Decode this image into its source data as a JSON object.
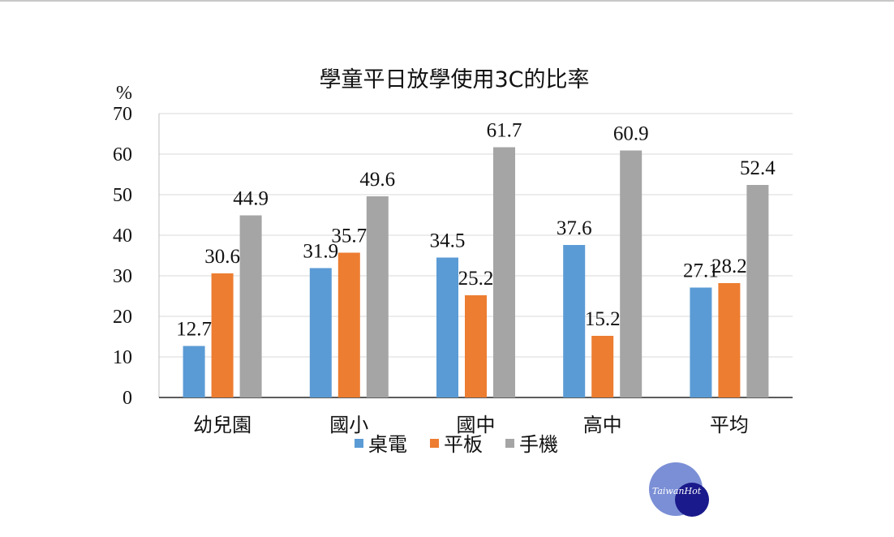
{
  "chart_data": {
    "type": "bar",
    "title": "學童平日放學使用3C的比率",
    "ylabel": "%",
    "xlabel": "",
    "ylim": [
      0,
      70
    ],
    "yticks": [
      0,
      10,
      20,
      30,
      40,
      50,
      60,
      70
    ],
    "grid": true,
    "legend_position": "bottom",
    "categories": [
      "幼兒園",
      "國小",
      "國中",
      "高中",
      "平均"
    ],
    "series": [
      {
        "name": "桌電",
        "color": "#5b9bd5",
        "values": [
          12.7,
          31.9,
          34.5,
          37.6,
          27.1
        ]
      },
      {
        "name": "平板",
        "color": "#ed7d31",
        "values": [
          30.6,
          35.7,
          25.2,
          15.2,
          28.2
        ]
      },
      {
        "name": "手機",
        "color": "#a5a5a5",
        "values": [
          44.9,
          49.6,
          61.7,
          60.9,
          52.4
        ]
      }
    ]
  },
  "watermark": {
    "text": "TaiwanHot",
    "colors": {
      "light": "#7b8fd6",
      "dark": "#1a1a8c"
    }
  }
}
